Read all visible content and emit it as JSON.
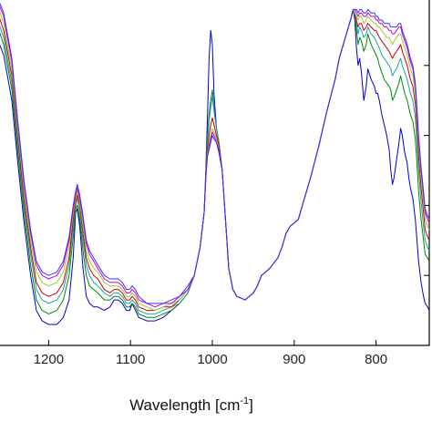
{
  "chart_data": {
    "type": "line",
    "title": "",
    "xlabel": "Wavelength [cm",
    "xlabel_superscript": "-1",
    "xlabel_close": "]",
    "ylabel": "",
    "x_reversed": true,
    "xlim": [
      1265,
      735
    ],
    "ylim": [
      0.0,
      1.0
    ],
    "x_ticks": [
      1200,
      1100,
      1000,
      900,
      800
    ],
    "x_tick_labels": [
      "1200",
      "1100",
      "1000",
      "900",
      "800"
    ],
    "y_ticks": [
      0.2,
      0.4,
      0.6,
      0.8
    ],
    "grid": false,
    "legend": "none",
    "x": [
      1265,
      1255,
      1245,
      1238,
      1230,
      1222,
      1215,
      1208,
      1200,
      1190,
      1182,
      1175,
      1170,
      1167,
      1165,
      1162,
      1158,
      1154,
      1150,
      1145,
      1140,
      1132,
      1125,
      1120,
      1115,
      1110,
      1105,
      1101,
      1098,
      1094,
      1090,
      1080,
      1070,
      1060,
      1050,
      1040,
      1030,
      1022,
      1015,
      1010,
      1008,
      1006,
      1004,
      1002,
      1000,
      998,
      995,
      992,
      988,
      984,
      980,
      975,
      970,
      960,
      950,
      945,
      940,
      935,
      930,
      920,
      915,
      910,
      905,
      900,
      895,
      890,
      880,
      870,
      860,
      850,
      845,
      840,
      835,
      830,
      828,
      826,
      824,
      822,
      820,
      818,
      815,
      812,
      810,
      806,
      802,
      800,
      798,
      796,
      793,
      790,
      787,
      784,
      782,
      780,
      778,
      775,
      772,
      770,
      768,
      765,
      762,
      760,
      758,
      755,
      752,
      750,
      748,
      745,
      742,
      740,
      737,
      735
    ],
    "series": [
      {
        "color": "#0000cc",
        "values": [
          0.89,
          0.83,
          0.7,
          0.53,
          0.35,
          0.2,
          0.1,
          0.07,
          0.06,
          0.06,
          0.08,
          0.13,
          0.25,
          0.38,
          0.39,
          0.34,
          0.22,
          0.14,
          0.12,
          0.11,
          0.11,
          0.1,
          0.11,
          0.13,
          0.13,
          0.12,
          0.1,
          0.1,
          0.12,
          0.1,
          0.08,
          0.07,
          0.07,
          0.08,
          0.1,
          0.12,
          0.15,
          0.2,
          0.28,
          0.38,
          0.5,
          0.65,
          0.82,
          0.9,
          0.86,
          0.72,
          0.62,
          0.58,
          0.5,
          0.36,
          0.22,
          0.16,
          0.14,
          0.13,
          0.15,
          0.17,
          0.2,
          0.21,
          0.22,
          0.25,
          0.28,
          0.32,
          0.34,
          0.35,
          0.36,
          0.4,
          0.48,
          0.57,
          0.67,
          0.76,
          0.82,
          0.86,
          0.9,
          0.94,
          0.96,
          0.93,
          0.85,
          0.8,
          0.82,
          0.78,
          0.7,
          0.74,
          0.79,
          0.76,
          0.74,
          0.72,
          0.72,
          0.7,
          0.66,
          0.63,
          0.6,
          0.56,
          0.5,
          0.46,
          0.48,
          0.53,
          0.58,
          0.62,
          0.6,
          0.55,
          0.52,
          0.48,
          0.45,
          0.42,
          0.36,
          0.3,
          0.24,
          0.18,
          0.14,
          0.12,
          0.11,
          0.1
        ]
      },
      {
        "color": "#008800",
        "values": [
          0.93,
          0.86,
          0.73,
          0.56,
          0.38,
          0.23,
          0.13,
          0.1,
          0.09,
          0.1,
          0.13,
          0.2,
          0.31,
          0.39,
          0.4,
          0.36,
          0.27,
          0.2,
          0.17,
          0.16,
          0.15,
          0.13,
          0.13,
          0.14,
          0.14,
          0.13,
          0.11,
          0.11,
          0.12,
          0.11,
          0.09,
          0.08,
          0.08,
          0.09,
          0.1,
          0.12,
          0.15,
          0.2,
          0.28,
          0.38,
          0.48,
          0.6,
          0.66,
          0.7,
          0.73,
          0.68,
          0.62,
          0.58,
          0.5,
          0.36,
          0.22,
          0.16,
          0.14,
          0.13,
          0.15,
          0.17,
          0.2,
          0.21,
          0.22,
          0.25,
          0.28,
          0.32,
          0.34,
          0.35,
          0.36,
          0.4,
          0.48,
          0.57,
          0.67,
          0.76,
          0.82,
          0.86,
          0.9,
          0.94,
          0.96,
          0.94,
          0.9,
          0.86,
          0.88,
          0.87,
          0.84,
          0.86,
          0.89,
          0.86,
          0.84,
          0.83,
          0.82,
          0.8,
          0.78,
          0.76,
          0.75,
          0.74,
          0.73,
          0.7,
          0.71,
          0.73,
          0.75,
          0.77,
          0.75,
          0.72,
          0.7,
          0.68,
          0.66,
          0.64,
          0.59,
          0.52,
          0.44,
          0.36,
          0.3,
          0.26,
          0.25,
          0.24
        ]
      },
      {
        "color": "#20a0a0",
        "values": [
          0.95,
          0.88,
          0.75,
          0.58,
          0.4,
          0.26,
          0.16,
          0.13,
          0.12,
          0.13,
          0.16,
          0.23,
          0.34,
          0.4,
          0.42,
          0.38,
          0.3,
          0.23,
          0.2,
          0.18,
          0.17,
          0.15,
          0.14,
          0.15,
          0.15,
          0.14,
          0.12,
          0.12,
          0.13,
          0.12,
          0.1,
          0.09,
          0.09,
          0.1,
          0.11,
          0.12,
          0.15,
          0.2,
          0.28,
          0.38,
          0.48,
          0.58,
          0.64,
          0.68,
          0.71,
          0.67,
          0.62,
          0.58,
          0.5,
          0.36,
          0.22,
          0.16,
          0.14,
          0.13,
          0.15,
          0.17,
          0.2,
          0.21,
          0.22,
          0.25,
          0.28,
          0.32,
          0.34,
          0.35,
          0.36,
          0.4,
          0.48,
          0.57,
          0.67,
          0.76,
          0.82,
          0.86,
          0.9,
          0.94,
          0.96,
          0.95,
          0.92,
          0.89,
          0.91,
          0.9,
          0.88,
          0.89,
          0.91,
          0.89,
          0.88,
          0.87,
          0.86,
          0.85,
          0.83,
          0.82,
          0.81,
          0.8,
          0.79,
          0.77,
          0.78,
          0.79,
          0.81,
          0.82,
          0.8,
          0.78,
          0.76,
          0.74,
          0.72,
          0.7,
          0.65,
          0.58,
          0.5,
          0.41,
          0.34,
          0.3,
          0.28,
          0.27
        ]
      },
      {
        "color": "#cc0000",
        "values": [
          0.97,
          0.9,
          0.77,
          0.6,
          0.42,
          0.28,
          0.18,
          0.15,
          0.14,
          0.15,
          0.18,
          0.25,
          0.36,
          0.41,
          0.43,
          0.4,
          0.32,
          0.25,
          0.22,
          0.2,
          0.19,
          0.16,
          0.15,
          0.16,
          0.16,
          0.15,
          0.13,
          0.13,
          0.14,
          0.13,
          0.11,
          0.1,
          0.1,
          0.11,
          0.11,
          0.13,
          0.16,
          0.2,
          0.28,
          0.38,
          0.48,
          0.56,
          0.6,
          0.63,
          0.65,
          0.63,
          0.6,
          0.57,
          0.5,
          0.36,
          0.22,
          0.16,
          0.14,
          0.13,
          0.15,
          0.17,
          0.2,
          0.21,
          0.22,
          0.25,
          0.28,
          0.32,
          0.34,
          0.35,
          0.36,
          0.4,
          0.48,
          0.57,
          0.67,
          0.76,
          0.82,
          0.86,
          0.9,
          0.94,
          0.96,
          0.95,
          0.93,
          0.91,
          0.92,
          0.92,
          0.9,
          0.91,
          0.92,
          0.91,
          0.9,
          0.9,
          0.89,
          0.88,
          0.87,
          0.86,
          0.85,
          0.84,
          0.83,
          0.82,
          0.83,
          0.84,
          0.85,
          0.86,
          0.84,
          0.82,
          0.8,
          0.78,
          0.76,
          0.74,
          0.69,
          0.62,
          0.54,
          0.45,
          0.38,
          0.33,
          0.31,
          0.3
        ]
      },
      {
        "color": "#99cc33",
        "values": [
          0.99,
          0.92,
          0.79,
          0.62,
          0.44,
          0.3,
          0.21,
          0.18,
          0.17,
          0.18,
          0.21,
          0.28,
          0.38,
          0.42,
          0.44,
          0.41,
          0.34,
          0.27,
          0.24,
          0.22,
          0.21,
          0.18,
          0.17,
          0.17,
          0.17,
          0.16,
          0.14,
          0.14,
          0.15,
          0.14,
          0.12,
          0.11,
          0.1,
          0.11,
          0.12,
          0.13,
          0.16,
          0.2,
          0.28,
          0.38,
          0.48,
          0.55,
          0.58,
          0.6,
          0.62,
          0.61,
          0.59,
          0.56,
          0.5,
          0.36,
          0.22,
          0.16,
          0.14,
          0.13,
          0.15,
          0.17,
          0.2,
          0.21,
          0.22,
          0.25,
          0.28,
          0.32,
          0.34,
          0.35,
          0.36,
          0.4,
          0.48,
          0.57,
          0.67,
          0.76,
          0.82,
          0.86,
          0.9,
          0.94,
          0.96,
          0.95,
          0.94,
          0.93,
          0.94,
          0.94,
          0.92,
          0.93,
          0.94,
          0.93,
          0.92,
          0.92,
          0.91,
          0.91,
          0.9,
          0.89,
          0.88,
          0.88,
          0.87,
          0.86,
          0.87,
          0.88,
          0.89,
          0.89,
          0.87,
          0.85,
          0.83,
          0.81,
          0.79,
          0.77,
          0.72,
          0.65,
          0.57,
          0.48,
          0.41,
          0.36,
          0.34,
          0.33
        ]
      },
      {
        "color": "#cc00cc",
        "values": [
          1.0,
          0.94,
          0.81,
          0.64,
          0.46,
          0.32,
          0.23,
          0.2,
          0.19,
          0.2,
          0.23,
          0.3,
          0.39,
          0.43,
          0.45,
          0.42,
          0.36,
          0.29,
          0.26,
          0.24,
          0.22,
          0.19,
          0.18,
          0.18,
          0.18,
          0.17,
          0.15,
          0.15,
          0.16,
          0.15,
          0.13,
          0.12,
          0.11,
          0.12,
          0.12,
          0.14,
          0.16,
          0.2,
          0.28,
          0.38,
          0.48,
          0.54,
          0.57,
          0.59,
          0.61,
          0.6,
          0.58,
          0.56,
          0.5,
          0.36,
          0.22,
          0.16,
          0.14,
          0.13,
          0.15,
          0.17,
          0.2,
          0.21,
          0.22,
          0.25,
          0.28,
          0.32,
          0.34,
          0.35,
          0.36,
          0.4,
          0.48,
          0.57,
          0.67,
          0.76,
          0.82,
          0.86,
          0.9,
          0.94,
          0.96,
          0.96,
          0.95,
          0.94,
          0.95,
          0.95,
          0.94,
          0.94,
          0.95,
          0.94,
          0.94,
          0.93,
          0.93,
          0.92,
          0.92,
          0.91,
          0.91,
          0.9,
          0.9,
          0.89,
          0.89,
          0.9,
          0.91,
          0.91,
          0.89,
          0.87,
          0.85,
          0.83,
          0.81,
          0.79,
          0.74,
          0.67,
          0.59,
          0.5,
          0.43,
          0.38,
          0.36,
          0.35
        ]
      },
      {
        "color": "#3333ff",
        "values": [
          1.01,
          0.95,
          0.82,
          0.65,
          0.47,
          0.33,
          0.24,
          0.21,
          0.2,
          0.21,
          0.24,
          0.31,
          0.4,
          0.44,
          0.46,
          0.43,
          0.37,
          0.3,
          0.27,
          0.25,
          0.23,
          0.2,
          0.19,
          0.19,
          0.19,
          0.18,
          0.16,
          0.16,
          0.17,
          0.16,
          0.14,
          0.12,
          0.12,
          0.12,
          0.13,
          0.14,
          0.17,
          0.2,
          0.28,
          0.38,
          0.48,
          0.54,
          0.56,
          0.58,
          0.6,
          0.59,
          0.58,
          0.55,
          0.5,
          0.36,
          0.22,
          0.16,
          0.14,
          0.13,
          0.15,
          0.17,
          0.2,
          0.21,
          0.22,
          0.25,
          0.28,
          0.32,
          0.34,
          0.35,
          0.36,
          0.4,
          0.48,
          0.57,
          0.67,
          0.76,
          0.82,
          0.86,
          0.9,
          0.94,
          0.96,
          0.96,
          0.96,
          0.95,
          0.96,
          0.96,
          0.95,
          0.95,
          0.96,
          0.95,
          0.95,
          0.94,
          0.94,
          0.93,
          0.93,
          0.92,
          0.92,
          0.92,
          0.91,
          0.91,
          0.91,
          0.91,
          0.92,
          0.92,
          0.9,
          0.88,
          0.86,
          0.84,
          0.82,
          0.8,
          0.75,
          0.68,
          0.6,
          0.51,
          0.44,
          0.39,
          0.37,
          0.36
        ]
      }
    ]
  }
}
